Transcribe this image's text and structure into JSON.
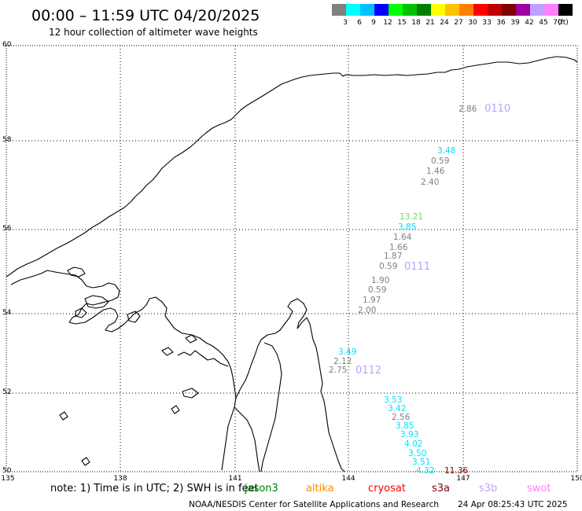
{
  "header": {
    "title": "00:00 – 11:59 UTC 04/20/2025",
    "subtitle": "12 hour collection of altimeter wave heights"
  },
  "legend": {
    "unit": "(ft)",
    "bins": [
      {
        "label": "3",
        "color": "#808080"
      },
      {
        "label": "6",
        "color": "#00ffff"
      },
      {
        "label": "9",
        "color": "#00c0ff"
      },
      {
        "label": "12",
        "color": "#0000ff"
      },
      {
        "label": "15",
        "color": "#00ff00"
      },
      {
        "label": "18",
        "color": "#00c000"
      },
      {
        "label": "21",
        "color": "#008000"
      },
      {
        "label": "24",
        "color": "#ffff00"
      },
      {
        "label": "27",
        "color": "#ffc000"
      },
      {
        "label": "30",
        "color": "#ff8000"
      },
      {
        "label": "33",
        "color": "#ff0000"
      },
      {
        "label": "36",
        "color": "#c00000"
      },
      {
        "label": "39",
        "color": "#800000"
      },
      {
        "label": "42",
        "color": "#a000a0"
      },
      {
        "label": "45",
        "color": "#c0a0ff"
      },
      {
        "label": "70",
        "color": "#ff80ff"
      },
      {
        "label": "",
        "color": "#000000"
      }
    ]
  },
  "map": {
    "lon_ticks": [
      "135",
      "138",
      "141",
      "144",
      "147",
      "150"
    ],
    "lat_ticks": [
      "60",
      "58",
      "56",
      "54",
      "52",
      "50"
    ]
  },
  "tracks": [
    {
      "label": "0110",
      "color": "#c0a0ff"
    },
    {
      "label": "0111",
      "color": "#c0a0ff"
    },
    {
      "label": "0112",
      "color": "#c0a0ff"
    }
  ],
  "observations": [
    {
      "text": "2.86",
      "color": "#808080"
    },
    {
      "text": "3.48",
      "color": "#00e0ff"
    },
    {
      "text": "0.59",
      "color": "#808080"
    },
    {
      "text": "1.46",
      "color": "#808080"
    },
    {
      "text": "2.40",
      "color": "#808080"
    },
    {
      "text": "13.21",
      "color": "#66dd66"
    },
    {
      "text": "3.85",
      "color": "#00e0ff"
    },
    {
      "text": "1.64",
      "color": "#808080"
    },
    {
      "text": "1.66",
      "color": "#808080"
    },
    {
      "text": "1.87",
      "color": "#808080"
    },
    {
      "text": "0.59",
      "color": "#808080"
    },
    {
      "text": "1.90",
      "color": "#808080"
    },
    {
      "text": "0.59",
      "color": "#808080"
    },
    {
      "text": "1.97",
      "color": "#808080"
    },
    {
      "text": "2.00",
      "color": "#808080"
    },
    {
      "text": "3.49",
      "color": "#00e0ff"
    },
    {
      "text": "2.12",
      "color": "#808080"
    },
    {
      "text": "2.75",
      "color": "#808080"
    },
    {
      "text": "3.53",
      "color": "#00e0ff"
    },
    {
      "text": "3.42",
      "color": "#00e0ff"
    },
    {
      "text": "2.56",
      "color": "#808080"
    },
    {
      "text": "3.85",
      "color": "#00e0ff"
    },
    {
      "text": "3.93",
      "color": "#00e0ff"
    },
    {
      "text": "4.02",
      "color": "#00e0ff"
    },
    {
      "text": "3.50",
      "color": "#00e0ff"
    },
    {
      "text": "3.51",
      "color": "#00e0ff"
    },
    {
      "text": "4.32",
      "color": "#00e0ff"
    },
    {
      "text": "11.36",
      "color": "#800000"
    }
  ],
  "footer": {
    "note": "note:  1) Time is in UTC; 2) SWH is in feet",
    "satellites": [
      {
        "name": "jason3",
        "color": "#008000"
      },
      {
        "name": "altika",
        "color": "#ff8c00"
      },
      {
        "name": "cryosat",
        "color": "#ff0000"
      },
      {
        "name": "s3a",
        "color": "#800000"
      },
      {
        "name": "s3b",
        "color": "#c0a0ff"
      },
      {
        "name": "swot",
        "color": "#ff80ff"
      }
    ],
    "credit": "NOAA/NESDIS Center for Satellite Applications and Research",
    "timestamp": "24 Apr 08:25:43 UTC 2025"
  }
}
